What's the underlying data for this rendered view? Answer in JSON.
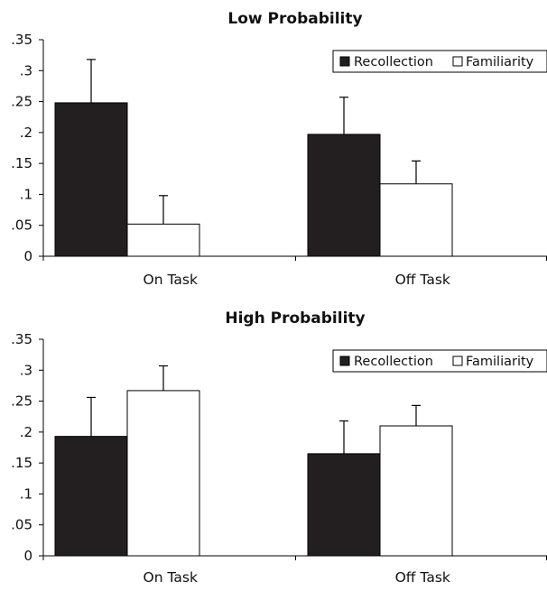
{
  "colors": {
    "recollection": "#231f20",
    "familiarity": "#ffffff",
    "axis": "#000000"
  },
  "chart_data": [
    {
      "type": "bar",
      "title": "Low Probability",
      "categories": [
        "On Task",
        "Off Task"
      ],
      "ylim": [
        0,
        0.35
      ],
      "yticks": [
        0,
        0.05,
        0.1,
        0.15,
        0.2,
        0.25,
        0.3,
        0.35
      ],
      "ytick_labels": [
        "0",
        ".05",
        ".1",
        ".15",
        ".2",
        ".25",
        ".3",
        ".35"
      ],
      "grid": false,
      "legend_position": "top-right",
      "series": [
        {
          "name": "Recollection",
          "values": [
            0.248,
            0.197
          ],
          "errors": [
            0.07,
            0.06
          ]
        },
        {
          "name": "Familiarity",
          "values": [
            0.052,
            0.117
          ],
          "errors": [
            0.046,
            0.037
          ]
        }
      ]
    },
    {
      "type": "bar",
      "title": "High Probability",
      "categories": [
        "On Task",
        "Off Task"
      ],
      "ylim": [
        0,
        0.35
      ],
      "yticks": [
        0,
        0.05,
        0.1,
        0.15,
        0.2,
        0.25,
        0.3,
        0.35
      ],
      "ytick_labels": [
        "0",
        ".05",
        ".1",
        ".15",
        ".2",
        ".25",
        ".3",
        ".35"
      ],
      "grid": false,
      "legend_position": "top-right",
      "series": [
        {
          "name": "Recollection",
          "values": [
            0.193,
            0.165
          ],
          "errors": [
            0.063,
            0.053
          ]
        },
        {
          "name": "Familiarity",
          "values": [
            0.267,
            0.21
          ],
          "errors": [
            0.04,
            0.033
          ]
        }
      ]
    }
  ]
}
